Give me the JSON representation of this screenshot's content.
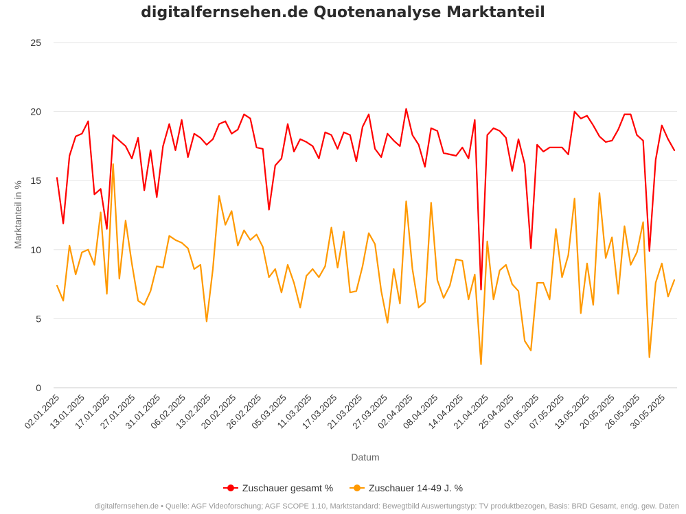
{
  "chart_data": {
    "type": "line",
    "title": "digitalfernsehen.de Quotenanalyse Marktanteil",
    "xlabel": "Datum",
    "ylabel": "Marktanteil in %",
    "ylim": [
      0,
      25
    ],
    "yticks": [
      0,
      5,
      10,
      15,
      20,
      25
    ],
    "grid": true,
    "legend_position": "bottom",
    "x_tick_labels": [
      "02.01.2025",
      "13.01.2025",
      "17.01.2025",
      "27.01.2025",
      "31.01.2025",
      "06.02.2025",
      "13.02.2025",
      "20.02.2025",
      "26.02.2025",
      "05.03.2025",
      "11.03.2025",
      "17.03.2025",
      "21.03.2025",
      "27.03.2025",
      "02.04.2025",
      "08.04.2025",
      "14.04.2025",
      "21.04.2025",
      "25.04.2025",
      "01.05.2025",
      "07.05.2025",
      "13.05.2025",
      "20.05.2025",
      "26.05.2025",
      "30.05.2025"
    ],
    "series": [
      {
        "name": "Zuschauer gesamt %",
        "color": "#ff0000",
        "values": [
          15.2,
          11.9,
          16.8,
          18.2,
          18.4,
          19.3,
          14.0,
          14.4,
          11.5,
          18.3,
          17.9,
          17.5,
          16.6,
          18.1,
          14.3,
          17.2,
          13.8,
          17.5,
          19.1,
          17.2,
          19.4,
          16.7,
          18.4,
          18.1,
          17.6,
          18.0,
          19.1,
          19.3,
          18.4,
          18.7,
          19.8,
          19.5,
          17.4,
          17.3,
          12.9,
          16.1,
          16.6,
          19.1,
          17.1,
          18.0,
          17.8,
          17.5,
          16.6,
          18.5,
          18.3,
          17.3,
          18.5,
          18.3,
          16.4,
          18.9,
          19.8,
          17.3,
          16.7,
          18.4,
          17.9,
          17.5,
          20.2,
          18.3,
          17.6,
          16.0,
          18.8,
          18.6,
          17.0,
          16.9,
          16.8,
          17.4,
          16.6,
          19.4,
          7.1,
          18.3,
          18.8,
          18.6,
          18.1,
          15.7,
          18.0,
          16.2,
          10.1,
          17.6,
          17.1,
          17.4,
          17.4,
          17.4,
          16.9,
          20.0,
          19.5,
          19.7,
          19.0,
          18.2,
          17.8,
          17.9,
          18.7,
          19.8,
          19.8,
          18.3,
          17.9,
          9.9,
          16.5,
          19.0,
          18.0,
          17.2
        ]
      },
      {
        "name": "Zuschauer 14-49 J. %",
        "color": "#ff9900",
        "values": [
          7.4,
          6.3,
          10.3,
          8.2,
          9.8,
          10.0,
          8.9,
          12.7,
          6.8,
          16.2,
          7.9,
          12.1,
          9.0,
          6.3,
          6.0,
          7.0,
          8.8,
          8.7,
          11.0,
          10.7,
          10.5,
          10.1,
          8.6,
          8.9,
          4.8,
          8.6,
          13.9,
          11.8,
          12.8,
          10.3,
          11.4,
          10.7,
          11.1,
          10.2,
          8.0,
          8.6,
          6.9,
          8.9,
          7.6,
          5.8,
          8.1,
          8.6,
          8.0,
          8.8,
          11.6,
          8.7,
          11.3,
          6.9,
          7.0,
          8.8,
          11.2,
          10.4,
          7.0,
          4.7,
          8.6,
          6.1,
          13.5,
          8.6,
          5.8,
          6.2,
          13.4,
          7.8,
          6.5,
          7.4,
          9.3,
          9.2,
          6.4,
          8.2,
          1.7,
          10.6,
          6.4,
          8.5,
          8.9,
          7.5,
          7.0,
          3.4,
          2.7,
          7.6,
          7.6,
          6.4,
          11.5,
          8.0,
          9.6,
          13.7,
          5.4,
          9.0,
          6.0,
          14.1,
          9.4,
          10.9,
          6.8,
          11.7,
          8.9,
          9.8,
          12.0,
          2.2,
          7.6,
          9.0,
          6.6,
          7.8
        ]
      }
    ]
  },
  "footer": "digitalfernsehen.de • Quelle: AGF Videoforschung; AGF SCOPE 1.10, Marktstandard: Bewegtbild Auswertungstyp: TV produktbezogen, Basis: BRD Gesamt, endg. gew. Daten"
}
